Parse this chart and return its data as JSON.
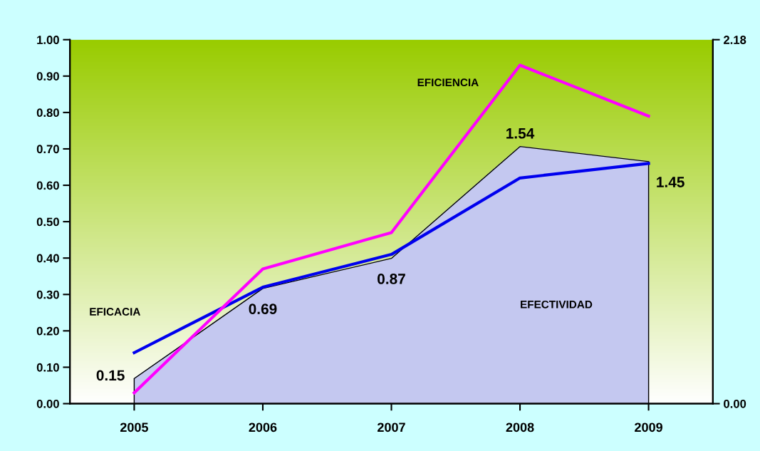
{
  "chart_data": {
    "type": "line",
    "categories": [
      "2005",
      "2006",
      "2007",
      "2008",
      "2009"
    ],
    "ylim": [
      0,
      1.0
    ],
    "yticks": [
      {
        "value": 0,
        "label": "0.00"
      },
      {
        "value": 0.1,
        "label": "0.10"
      },
      {
        "value": 0.2,
        "label": "0.20"
      },
      {
        "value": 0.3,
        "label": "0.30"
      },
      {
        "value": 0.4,
        "label": "0.40"
      },
      {
        "value": 0.5,
        "label": "0.50"
      },
      {
        "value": 0.6,
        "label": "0.60"
      },
      {
        "value": 0.7,
        "label": "0.70"
      },
      {
        "value": 0.8,
        "label": "0.80"
      },
      {
        "value": 0.9,
        "label": "0.90"
      },
      {
        "value": 1.0,
        "label": "1.00"
      }
    ],
    "y2lim": [
      0,
      2.18
    ],
    "y2ticks": [
      {
        "value": 0,
        "label": "0.00"
      },
      2.18
    ],
    "series": [
      {
        "name": "EFECTIVIDAD",
        "type": "area",
        "axis": "y2",
        "color": "#c4c8f0",
        "values": [
          0.15,
          0.69,
          0.87,
          1.54,
          1.45
        ],
        "data_labels": true
      },
      {
        "name": "EFICACIA",
        "color": "#0000ee",
        "values": [
          0.14,
          0.32,
          0.41,
          0.62,
          0.66
        ]
      },
      {
        "name": "EFICIENCIA",
        "color": "#ff00ff",
        "values": [
          0.03,
          0.37,
          0.47,
          0.93,
          0.79
        ]
      }
    ],
    "grid": false,
    "legend": false,
    "marker": "none",
    "line_style": "solid"
  }
}
